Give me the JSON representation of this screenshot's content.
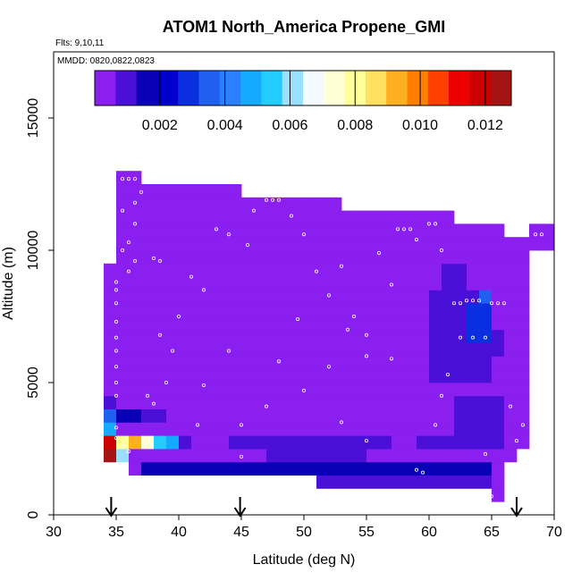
{
  "chart_data": {
    "type": "heatmap",
    "title": "ATOM1 North_America Propene_GMI",
    "xlabel": "Latitude (deg N)",
    "ylabel": "Altitude (m)",
    "xlim": [
      30,
      70
    ],
    "ylim": [
      0,
      17500
    ],
    "xticks": [
      30,
      35,
      40,
      45,
      50,
      55,
      60,
      65,
      70
    ],
    "yticks": [
      0,
      5000,
      10000,
      15000
    ],
    "notes": {
      "flights": "Flts: 9,10,11",
      "dates": "MMDD: 0820,0822,0823"
    },
    "colorbar": {
      "min": 0.0,
      "max": 0.0128,
      "ticks": [
        0.002,
        0.004,
        0.006,
        0.008,
        0.01,
        0.012
      ],
      "tick_labels": [
        "0.002",
        "0.004",
        "0.006",
        "0.008",
        "0.010",
        "0.012"
      ],
      "colors": [
        "#8a1ff0",
        "#4b10d8",
        "#0a00b8",
        "#0000cc",
        "#0a2fe0",
        "#1f60f0",
        "#2a80ff",
        "#14aaff",
        "#22ccff",
        "#99e0ff",
        "#f2f9ff",
        "#ffffd8",
        "#ffff99",
        "#ffe060",
        "#ffb020",
        "#ff8000",
        "#ff4000",
        "#ee0000",
        "#cc0000",
        "#a51414"
      ]
    },
    "cell_size": {
      "dlat": 1.0,
      "dalt": 500
    },
    "columns": [
      {
        "lat": 34.5,
        "alt_min": 2000,
        "alt_max": 9500
      },
      {
        "lat": 35.5,
        "alt_min": 2000,
        "alt_max": 13000
      },
      {
        "lat": 36.5,
        "alt_min": 1500,
        "alt_max": 13000
      },
      {
        "lat": 37.5,
        "alt_min": 1500,
        "alt_max": 12500
      },
      {
        "lat": 38.5,
        "alt_min": 1500,
        "alt_max": 12500
      },
      {
        "lat": 39.5,
        "alt_min": 1500,
        "alt_max": 12500
      },
      {
        "lat": 40.5,
        "alt_min": 1500,
        "alt_max": 12500
      },
      {
        "lat": 41.5,
        "alt_min": 1500,
        "alt_max": 12500
      },
      {
        "lat": 42.5,
        "alt_min": 1500,
        "alt_max": 12500
      },
      {
        "lat": 43.5,
        "alt_min": 1500,
        "alt_max": 12500
      },
      {
        "lat": 44.5,
        "alt_min": 1500,
        "alt_max": 12500
      },
      {
        "lat": 45.5,
        "alt_min": 1500,
        "alt_max": 12000
      },
      {
        "lat": 46.5,
        "alt_min": 1500,
        "alt_max": 12000
      },
      {
        "lat": 47.5,
        "alt_min": 1500,
        "alt_max": 12000
      },
      {
        "lat": 48.5,
        "alt_min": 1500,
        "alt_max": 12000
      },
      {
        "lat": 49.5,
        "alt_min": 1500,
        "alt_max": 12000
      },
      {
        "lat": 50.5,
        "alt_min": 1500,
        "alt_max": 12000
      },
      {
        "lat": 51.5,
        "alt_min": 1000,
        "alt_max": 12000
      },
      {
        "lat": 52.5,
        "alt_min": 1000,
        "alt_max": 12000
      },
      {
        "lat": 53.5,
        "alt_min": 1000,
        "alt_max": 11500
      },
      {
        "lat": 54.5,
        "alt_min": 1000,
        "alt_max": 11500
      },
      {
        "lat": 55.5,
        "alt_min": 1000,
        "alt_max": 11500
      },
      {
        "lat": 56.5,
        "alt_min": 1000,
        "alt_max": 11500
      },
      {
        "lat": 57.5,
        "alt_min": 1000,
        "alt_max": 11500
      },
      {
        "lat": 58.5,
        "alt_min": 1000,
        "alt_max": 11500
      },
      {
        "lat": 59.5,
        "alt_min": 1000,
        "alt_max": 11500
      },
      {
        "lat": 60.5,
        "alt_min": 1000,
        "alt_max": 11500
      },
      {
        "lat": 61.5,
        "alt_min": 1000,
        "alt_max": 11500
      },
      {
        "lat": 62.5,
        "alt_min": 1000,
        "alt_max": 11000
      },
      {
        "lat": 63.5,
        "alt_min": 1000,
        "alt_max": 11000
      },
      {
        "lat": 64.5,
        "alt_min": 1000,
        "alt_max": 11000
      },
      {
        "lat": 65.5,
        "alt_min": 500,
        "alt_max": 11000
      },
      {
        "lat": 66.5,
        "alt_min": 2000,
        "alt_max": 10500
      },
      {
        "lat": 67.5,
        "alt_min": 2500,
        "alt_max": 10500
      },
      {
        "lat": 68.5,
        "alt_min": 10000,
        "alt_max": 11000
      },
      {
        "lat": 69.5,
        "alt_min": 10000,
        "alt_max": 11000
      }
    ],
    "background_value": 0.0002,
    "patches": [
      {
        "lat": [
          34,
          35
        ],
        "alt": [
          2000,
          2500
        ],
        "value": 0.0127
      },
      {
        "lat": [
          34,
          35
        ],
        "alt": [
          2500,
          3000
        ],
        "value": 0.0118
      },
      {
        "lat": [
          35,
          36
        ],
        "alt": [
          2000,
          2500
        ],
        "value": 0.0062
      },
      {
        "lat": [
          35,
          36
        ],
        "alt": [
          2500,
          3000
        ],
        "value": 0.0082
      },
      {
        "lat": [
          36,
          37
        ],
        "alt": [
          2500,
          3000
        ],
        "value": 0.0096
      },
      {
        "lat": [
          37,
          38
        ],
        "alt": [
          2500,
          3000
        ],
        "value": 0.0074
      },
      {
        "lat": [
          38,
          39
        ],
        "alt": [
          2500,
          3000
        ],
        "value": 0.0052
      },
      {
        "lat": [
          39,
          40
        ],
        "alt": [
          2500,
          3000
        ],
        "value": 0.0046
      },
      {
        "lat": [
          40,
          41
        ],
        "alt": [
          2500,
          3000
        ],
        "value": 0.0012
      },
      {
        "lat": [
          34,
          35
        ],
        "alt": [
          3000,
          3500
        ],
        "value": 0.0046
      },
      {
        "lat": [
          34,
          35
        ],
        "alt": [
          3500,
          4000
        ],
        "value": 0.0034
      },
      {
        "lat": [
          35,
          37
        ],
        "alt": [
          3500,
          4000
        ],
        "value": 0.0013
      },
      {
        "lat": [
          37,
          39
        ],
        "alt": [
          3500,
          4000
        ],
        "value": 0.0009
      },
      {
        "lat": [
          34,
          35
        ],
        "alt": [
          4000,
          4500
        ],
        "value": 0.0007
      },
      {
        "lat": [
          37,
          65
        ],
        "alt": [
          1500,
          2000
        ],
        "value": 0.0013
      },
      {
        "lat": [
          51,
          65
        ],
        "alt": [
          1000,
          1500
        ],
        "value": 0.0012
      },
      {
        "lat": [
          44,
          57
        ],
        "alt": [
          2500,
          3000
        ],
        "value": 0.0009
      },
      {
        "lat": [
          47,
          55
        ],
        "alt": [
          2000,
          2500
        ],
        "value": 0.0008
      },
      {
        "lat": [
          59,
          66
        ],
        "alt": [
          2500,
          3000
        ],
        "value": 0.0007
      },
      {
        "lat": [
          62,
          66
        ],
        "alt": [
          3000,
          4500
        ],
        "value": 0.001
      },
      {
        "lat": [
          60,
          65
        ],
        "alt": [
          5000,
          8500
        ],
        "value": 0.001
      },
      {
        "lat": [
          61,
          63
        ],
        "alt": [
          8500,
          9500
        ],
        "value": 0.0008
      },
      {
        "lat": [
          63,
          65
        ],
        "alt": [
          6500,
          8000
        ],
        "value": 0.0026
      },
      {
        "lat": [
          64,
          65
        ],
        "alt": [
          8000,
          8500
        ],
        "value": 0.0034
      },
      {
        "lat": [
          65,
          66
        ],
        "alt": [
          6000,
          7000
        ],
        "value": 0.001
      },
      {
        "lat": [
          57,
          60
        ],
        "alt": [
          6000,
          8500
        ],
        "value": 0.0005
      },
      {
        "lat": [
          39,
          44
        ],
        "alt": [
          9500,
          10000
        ],
        "value": 0.0004
      }
    ],
    "sample_points": [
      [
        35.5,
        12700
      ],
      [
        36.0,
        12700
      ],
      [
        36.5,
        12700
      ],
      [
        37.0,
        12200
      ],
      [
        36.5,
        11800
      ],
      [
        35.5,
        11500
      ],
      [
        36.5,
        11000
      ],
      [
        36.0,
        10300
      ],
      [
        35.5,
        10000
      ],
      [
        36.5,
        9600
      ],
      [
        38.0,
        9700
      ],
      [
        38.5,
        9600
      ],
      [
        36.0,
        9200
      ],
      [
        35.0,
        8800
      ],
      [
        35.0,
        8500
      ],
      [
        35.0,
        8000
      ],
      [
        35.0,
        7300
      ],
      [
        35.0,
        6700
      ],
      [
        35.0,
        6200
      ],
      [
        35.0,
        5600
      ],
      [
        35.0,
        5000
      ],
      [
        35.0,
        4500
      ],
      [
        35.0,
        3300
      ],
      [
        35.0,
        2900
      ],
      [
        35.5,
        2600
      ],
      [
        36.0,
        2400
      ],
      [
        37.5,
        4500
      ],
      [
        38.5,
        6800
      ],
      [
        39.5,
        6200
      ],
      [
        40.0,
        7500
      ],
      [
        41.0,
        9000
      ],
      [
        42.0,
        8500
      ],
      [
        43.0,
        10800
      ],
      [
        44.0,
        10600
      ],
      [
        45.5,
        10200
      ],
      [
        46.0,
        11500
      ],
      [
        47.0,
        11900
      ],
      [
        47.5,
        11900
      ],
      [
        48.0,
        11900
      ],
      [
        49.0,
        11300
      ],
      [
        50.0,
        10600
      ],
      [
        51.0,
        9200
      ],
      [
        52.0,
        8300
      ],
      [
        53.0,
        9400
      ],
      [
        54.0,
        7500
      ],
      [
        55.0,
        6800
      ],
      [
        56.0,
        9900
      ],
      [
        57.0,
        8700
      ],
      [
        57.5,
        10800
      ],
      [
        58.0,
        10800
      ],
      [
        58.5,
        10800
      ],
      [
        59.0,
        10400
      ],
      [
        60.0,
        11000
      ],
      [
        60.5,
        11000
      ],
      [
        61.0,
        10000
      ],
      [
        62.0,
        8000
      ],
      [
        62.5,
        8000
      ],
      [
        63.0,
        8100
      ],
      [
        63.5,
        8100
      ],
      [
        64.0,
        8100
      ],
      [
        65.0,
        8000
      ],
      [
        65.5,
        8000
      ],
      [
        66.0,
        8000
      ],
      [
        64.5,
        6700
      ],
      [
        63.5,
        6700
      ],
      [
        62.5,
        6700
      ],
      [
        61.5,
        5300
      ],
      [
        61.0,
        4500
      ],
      [
        60.5,
        3400
      ],
      [
        59.5,
        1600
      ],
      [
        59.0,
        1700
      ],
      [
        64.5,
        2300
      ],
      [
        65.0,
        700
      ],
      [
        66.5,
        4100
      ],
      [
        67.0,
        2800
      ],
      [
        67.5,
        3400
      ],
      [
        68.5,
        10600
      ],
      [
        69.0,
        10600
      ],
      [
        41.5,
        3400
      ],
      [
        45.0,
        3400
      ],
      [
        47.0,
        4100
      ],
      [
        50.0,
        4700
      ],
      [
        53.0,
        3500
      ],
      [
        55.0,
        2800
      ],
      [
        45.0,
        2200
      ],
      [
        38.0,
        4200
      ],
      [
        39.0,
        5000
      ],
      [
        42.0,
        4900
      ],
      [
        44.0,
        6200
      ],
      [
        48.0,
        5800
      ],
      [
        52.0,
        5600
      ],
      [
        55.0,
        6000
      ],
      [
        57.0,
        5900
      ],
      [
        49.5,
        7400
      ],
      [
        53.5,
        7000
      ]
    ],
    "markers": [
      {
        "lat": 34.6,
        "dir": "down"
      },
      {
        "lat": 44.9,
        "dir": "down"
      },
      {
        "lat": 67.0,
        "dir": "down"
      }
    ]
  }
}
